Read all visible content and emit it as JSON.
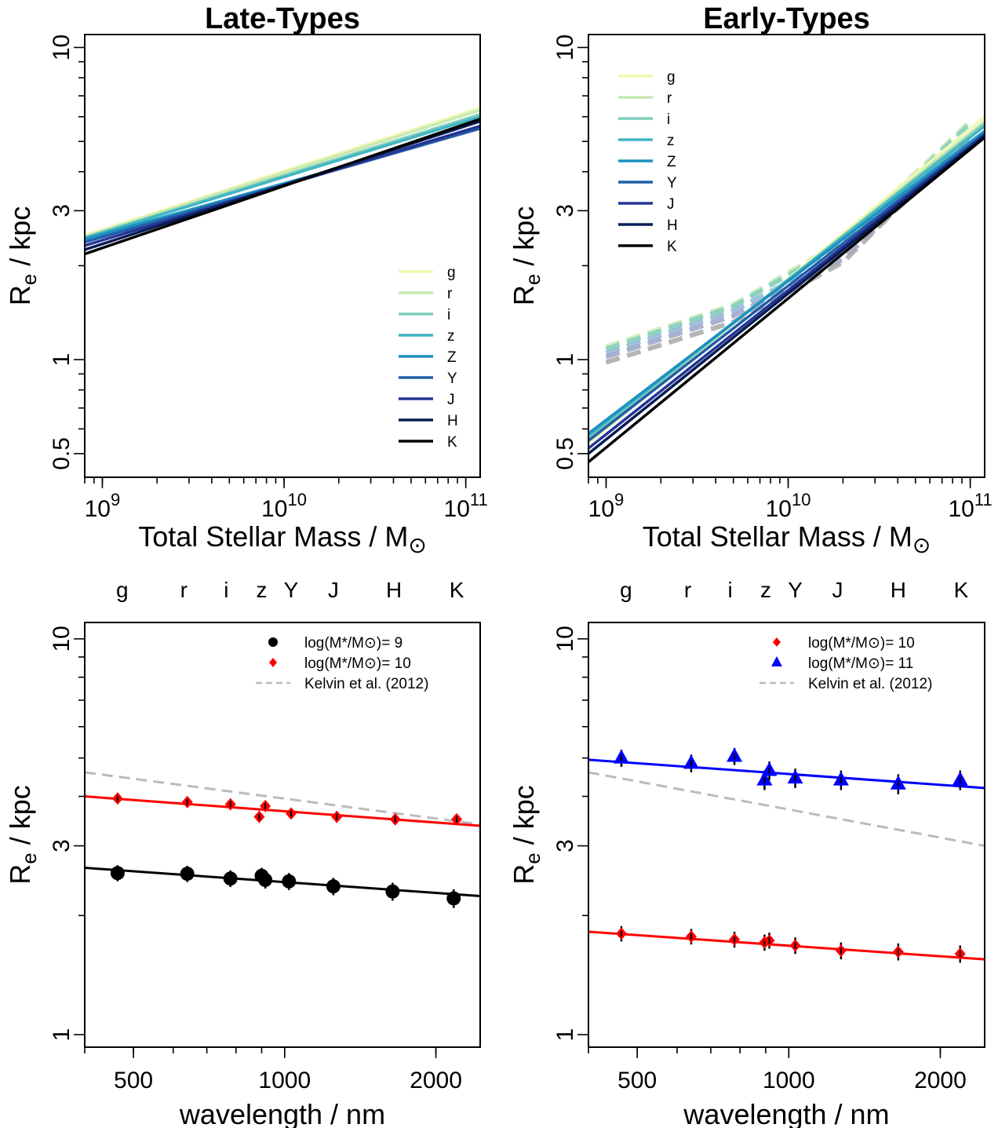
{
  "chart_data": [
    {
      "type": "line",
      "title": "Late-Types",
      "xlabel_text": "Total Stellar Mass / M",
      "xlabel_symbol": "⊙",
      "ylabel_main": "R",
      "ylabel_sub": "e",
      "ylabel_rest": " / kpc",
      "x_scale": "log",
      "y_scale": "log",
      "xlim": [
        800000000,
        120000000000
      ],
      "ylim": [
        0.42,
        11
      ],
      "x_ticks": [
        {
          "v": 1000000000.0,
          "base": "10",
          "exp": "9"
        },
        {
          "v": 10000000000.0,
          "base": "10",
          "exp": "10"
        },
        {
          "v": 100000000000.0,
          "base": "10",
          "exp": "11"
        }
      ],
      "y_major_ticks": [
        {
          "v": 0.5,
          "label": "0.5"
        },
        {
          "v": 1,
          "label": "1"
        },
        {
          "v": 3,
          "label": "3"
        },
        {
          "v": 10,
          "label": "10"
        }
      ],
      "y_minor_ticks": [
        0.6,
        0.7,
        0.8,
        0.9,
        2,
        4,
        5,
        6,
        7,
        8,
        9
      ],
      "legend_position": "bottom-right",
      "series": [
        {
          "name": "g",
          "color": "#edf8b1",
          "x": [
            800000000,
            120000000000
          ],
          "y": [
            2.5,
            6.4
          ]
        },
        {
          "name": "r",
          "color": "#c7e9b4",
          "x": [
            800000000,
            120000000000
          ],
          "y": [
            2.48,
            6.3
          ]
        },
        {
          "name": "i",
          "color": "#7fcdbb",
          "x": [
            800000000,
            120000000000
          ],
          "y": [
            2.46,
            6.1
          ]
        },
        {
          "name": "z",
          "color": "#41b6c4",
          "x": [
            800000000,
            120000000000
          ],
          "y": [
            2.45,
            6.0
          ]
        },
        {
          "name": "Z",
          "color": "#1d91c0",
          "x": [
            800000000,
            120000000000
          ],
          "y": [
            2.43,
            5.5
          ]
        },
        {
          "name": "Y",
          "color": "#225ea8",
          "x": [
            800000000,
            120000000000
          ],
          "y": [
            2.38,
            5.5
          ]
        },
        {
          "name": "J",
          "color": "#253494",
          "x": [
            800000000,
            120000000000
          ],
          "y": [
            2.32,
            5.6
          ]
        },
        {
          "name": "H",
          "color": "#081d58",
          "x": [
            800000000,
            120000000000
          ],
          "y": [
            2.25,
            5.8
          ]
        },
        {
          "name": "K",
          "color": "#000000",
          "x": [
            800000000,
            120000000000
          ],
          "y": [
            2.18,
            5.9
          ]
        }
      ]
    },
    {
      "type": "line",
      "title": "Early-Types",
      "xlabel_text": "Total Stellar Mass / M",
      "xlabel_symbol": "⊙",
      "ylabel_main": "R",
      "ylabel_sub": "e",
      "ylabel_rest": " / kpc",
      "x_scale": "log",
      "y_scale": "log",
      "xlim": [
        800000000,
        120000000000
      ],
      "ylim": [
        0.42,
        11
      ],
      "x_ticks": [
        {
          "v": 1000000000.0,
          "base": "10",
          "exp": "9"
        },
        {
          "v": 10000000000.0,
          "base": "10",
          "exp": "10"
        },
        {
          "v": 100000000000.0,
          "base": "10",
          "exp": "11"
        }
      ],
      "y_major_ticks": [
        {
          "v": 0.5,
          "label": "0.5"
        },
        {
          "v": 1,
          "label": "1"
        },
        {
          "v": 3,
          "label": "3"
        },
        {
          "v": 10,
          "label": "10"
        }
      ],
      "y_minor_ticks": [
        0.6,
        0.7,
        0.8,
        0.9,
        2,
        4,
        5,
        6,
        7,
        8,
        9
      ],
      "legend_position": "top-left",
      "series": [
        {
          "name": "g",
          "color": "#edf8b1",
          "x": [
            800000000,
            120000000000
          ],
          "y": [
            0.54,
            6.0
          ]
        },
        {
          "name": "r",
          "color": "#c7e9b4",
          "x": [
            800000000,
            120000000000
          ],
          "y": [
            0.55,
            5.8
          ]
        },
        {
          "name": "i",
          "color": "#7fcdbb",
          "x": [
            800000000,
            120000000000
          ],
          "y": [
            0.56,
            5.7
          ]
        },
        {
          "name": "z",
          "color": "#41b6c4",
          "x": [
            800000000,
            120000000000
          ],
          "y": [
            0.57,
            5.6
          ]
        },
        {
          "name": "Z",
          "color": "#1d91c0",
          "x": [
            800000000,
            120000000000
          ],
          "y": [
            0.58,
            5.4
          ]
        },
        {
          "name": "Y",
          "color": "#225ea8",
          "x": [
            800000000,
            120000000000
          ],
          "y": [
            0.55,
            5.3
          ]
        },
        {
          "name": "J",
          "color": "#253494",
          "x": [
            800000000,
            120000000000
          ],
          "y": [
            0.52,
            5.25
          ]
        },
        {
          "name": "H",
          "color": "#081d58",
          "x": [
            800000000,
            120000000000
          ],
          "y": [
            0.5,
            5.2
          ]
        },
        {
          "name": "K",
          "color": "#000000",
          "x": [
            800000000,
            120000000000
          ],
          "y": [
            0.47,
            5.15
          ]
        }
      ],
      "dashed_series": [
        {
          "color": "#c7e9b4",
          "x": [
            1000000000,
            5000000000,
            20000000000,
            100000000000
          ],
          "y": [
            1.1,
            1.5,
            2.4,
            5.8
          ]
        },
        {
          "color": "#7fcdbb",
          "x": [
            1000000000,
            5000000000,
            20000000000,
            100000000000
          ],
          "y": [
            1.08,
            1.48,
            2.35,
            5.7
          ]
        },
        {
          "color": "#8fb5d5",
          "x": [
            1000000000,
            5000000000,
            20000000000,
            100000000000
          ],
          "y": [
            1.05,
            1.43,
            2.2,
            5.2
          ]
        },
        {
          "color": "#9aa3c7",
          "x": [
            1000000000,
            5000000000,
            20000000000,
            100000000000
          ],
          "y": [
            1.02,
            1.38,
            2.1,
            5.0
          ]
        },
        {
          "color": "#a8a8a8",
          "x": [
            1000000000,
            5000000000,
            20000000000,
            100000000000
          ],
          "y": [
            0.98,
            1.32,
            2.05,
            5.2
          ]
        }
      ]
    },
    {
      "type": "scatter",
      "xlabel": "wavelength / nm",
      "ylabel_main": "R",
      "ylabel_sub": "e",
      "ylabel_rest": " / kpc",
      "x_scale": "log",
      "y_scale": "log",
      "xlim": [
        400,
        2450
      ],
      "ylim": [
        0.93,
        11
      ],
      "x_ticks": [
        {
          "v": 500,
          "label": "500"
        },
        {
          "v": 1000,
          "label": "1000"
        },
        {
          "v": 2000,
          "label": "2000"
        }
      ],
      "y_major_ticks": [
        {
          "v": 1,
          "label": "1"
        },
        {
          "v": 3,
          "label": "3"
        },
        {
          "v": 10,
          "label": "10"
        }
      ],
      "y_minor_ticks": [
        2,
        4,
        5,
        6,
        7,
        8,
        9
      ],
      "bands": [
        {
          "name": "g",
          "x": 475
        },
        {
          "name": "r",
          "x": 630
        },
        {
          "name": "i",
          "x": 765
        },
        {
          "name": "z",
          "x": 900
        },
        {
          "name": "Y",
          "x": 1030
        },
        {
          "name": "J",
          "x": 1250
        },
        {
          "name": "H",
          "x": 1650
        },
        {
          "name": "K",
          "x": 2200
        }
      ],
      "legend_position": "top-right",
      "legend": [
        {
          "label": "log(M*/M⊙)= 9",
          "marker": "circle",
          "color": "#000000"
        },
        {
          "label": "log(M*/M⊙)= 10",
          "marker": "diamond",
          "color": "#ff0000"
        },
        {
          "label": "Kelvin et al. (2012)",
          "marker": "dash",
          "color": "#bbbbbb"
        }
      ],
      "series": [
        {
          "name": "log(M*/M⊙)= 9",
          "marker": "circle",
          "color": "#000000",
          "x": [
            465,
            640,
            780,
            900,
            915,
            1020,
            1250,
            1640,
            2170
          ],
          "y": [
            2.56,
            2.55,
            2.48,
            2.52,
            2.46,
            2.44,
            2.37,
            2.3,
            2.21
          ],
          "err": [
            0.12,
            0.12,
            0.12,
            0.12,
            0.12,
            0.12,
            0.12,
            0.12,
            0.12
          ],
          "fit": {
            "x": [
              400,
              2450
            ],
            "y": [
              2.64,
              2.24
            ]
          }
        },
        {
          "name": "log(M*/M⊙)= 10",
          "marker": "diamond",
          "color": "#ff0000",
          "x": [
            465,
            640,
            780,
            890,
            915,
            1030,
            1270,
            1660,
            2200
          ],
          "y": [
            3.95,
            3.87,
            3.82,
            3.55,
            3.78,
            3.62,
            3.55,
            3.5,
            3.5
          ],
          "err": [
            0.1,
            0.1,
            0.1,
            0.1,
            0.1,
            0.1,
            0.1,
            0.1,
            0.1
          ],
          "fit": {
            "x": [
              400,
              2450
            ],
            "y": [
              4.0,
              3.37
            ]
          }
        }
      ],
      "reference": {
        "name": "Kelvin et al. (2012)",
        "color": "#bbbbbb",
        "x": [
          400,
          2450
        ],
        "y": [
          4.6,
          3.4
        ]
      }
    },
    {
      "type": "scatter",
      "xlabel": "wavelength / nm",
      "ylabel_main": "R",
      "ylabel_sub": "e",
      "ylabel_rest": " / kpc",
      "x_scale": "log",
      "y_scale": "log",
      "xlim": [
        400,
        2450
      ],
      "ylim": [
        0.93,
        11
      ],
      "x_ticks": [
        {
          "v": 500,
          "label": "500"
        },
        {
          "v": 1000,
          "label": "1000"
        },
        {
          "v": 2000,
          "label": "2000"
        }
      ],
      "y_major_ticks": [
        {
          "v": 1,
          "label": "1"
        },
        {
          "v": 3,
          "label": "3"
        },
        {
          "v": 10,
          "label": "10"
        }
      ],
      "y_minor_ticks": [
        2,
        4,
        5,
        6,
        7,
        8,
        9
      ],
      "bands": [
        {
          "name": "g",
          "x": 475
        },
        {
          "name": "r",
          "x": 630
        },
        {
          "name": "i",
          "x": 765
        },
        {
          "name": "z",
          "x": 900
        },
        {
          "name": "Y",
          "x": 1030
        },
        {
          "name": "J",
          "x": 1250
        },
        {
          "name": "H",
          "x": 1650
        },
        {
          "name": "K",
          "x": 2200
        }
      ],
      "legend_position": "top-right",
      "legend": [
        {
          "label": "log(M*/M⊙)= 10",
          "marker": "diamond",
          "color": "#ff0000"
        },
        {
          "label": "log(M*/M⊙)= 11",
          "marker": "triangle",
          "color": "#0000ff"
        },
        {
          "label": "Kelvin et al. (2012)",
          "marker": "dash",
          "color": "#bbbbbb"
        }
      ],
      "series": [
        {
          "name": "log(M*/M⊙)= 10",
          "marker": "diamond",
          "color": "#ff0000",
          "x": [
            465,
            640,
            780,
            895,
            915,
            1030,
            1270,
            1650,
            2190
          ],
          "y": [
            1.8,
            1.77,
            1.74,
            1.71,
            1.73,
            1.68,
            1.63,
            1.62,
            1.6
          ],
          "err": [
            0.08,
            0.08,
            0.08,
            0.08,
            0.08,
            0.08,
            0.08,
            0.08,
            0.08
          ],
          "fit": {
            "x": [
              400,
              2450
            ],
            "y": [
              1.82,
              1.55
            ]
          }
        },
        {
          "name": "log(M*/M⊙)= 11",
          "marker": "triangle",
          "color": "#0000ff",
          "x": [
            465,
            640,
            780,
            895,
            915,
            1030,
            1270,
            1650,
            2190
          ],
          "y": [
            5.0,
            4.85,
            5.05,
            4.4,
            4.65,
            4.45,
            4.4,
            4.3,
            4.4
          ],
          "err": [
            0.25,
            0.25,
            0.25,
            0.25,
            0.25,
            0.25,
            0.25,
            0.25,
            0.25
          ],
          "fit": {
            "x": [
              400,
              2450
            ],
            "y": [
              4.95,
              4.2
            ]
          }
        }
      ],
      "reference": {
        "name": "Kelvin et al. (2012)",
        "color": "#bbbbbb",
        "x": [
          400,
          2450
        ],
        "y": [
          4.6,
          3.0
        ]
      }
    }
  ]
}
